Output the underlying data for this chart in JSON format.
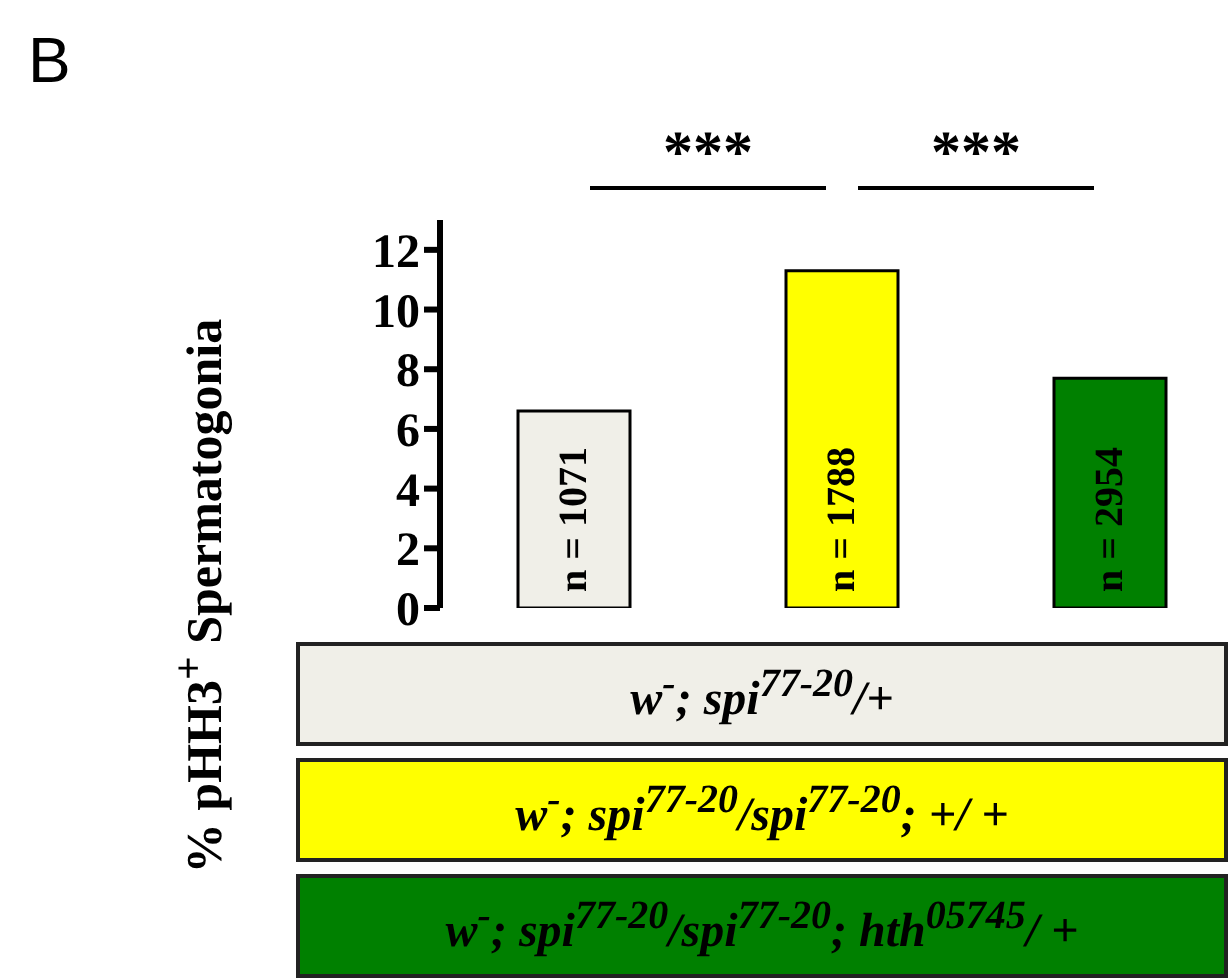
{
  "chart_data": {
    "type": "bar",
    "title": "B",
    "ylabel": "% pHH3$^{+}$ Spermatogonia",
    "categories": [
      null,
      null,
      null
    ],
    "series": [
      {
        "name": "w$^{-}$; spi$^{77-20}$/+",
        "color": "#f0efe8",
        "values": [
          6.6,
          null,
          null
        ]
      },
      {
        "name": "w$^{-}$; spi$^{77-20}$/spi$^{77-20}$; +/ +",
        "color": "#ffff00",
        "values": [
          null,
          11.3,
          null
        ]
      },
      {
        "name": "w$^{-}$; spi$^{77-20}$/spi$^{77-20}$; hth$^{05745}$/ +",
        "color": "#008000",
        "values": [
          null,
          null,
          7.7
        ]
      }
    ],
    "stacked": true,
    "ylim": [
      0,
      13
    ],
    "yticks": [
      0,
      2,
      4,
      6,
      8,
      10,
      12
    ],
    "grid": false,
    "legend": "bottom",
    "annotations": [
      "***",
      "***",
      "n = 1071",
      "n = 1788",
      "n = 2954"
    ]
  }
}
